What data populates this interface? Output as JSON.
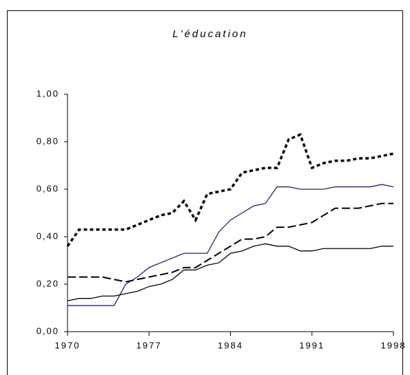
{
  "chart_data": {
    "type": "line",
    "title": "L'éducation",
    "x": [
      1970,
      1971,
      1972,
      1973,
      1974,
      1975,
      1976,
      1977,
      1978,
      1979,
      1980,
      1981,
      1982,
      1983,
      1984,
      1985,
      1986,
      1987,
      1988,
      1989,
      1990,
      1991,
      1992,
      1993,
      1994,
      1995,
      1996,
      1997,
      1998
    ],
    "series": [
      {
        "color": "#000000",
        "style": "dotted",
        "values": [
          0.36,
          0.43,
          0.43,
          0.43,
          0.43,
          0.43,
          0.45,
          0.47,
          0.49,
          0.5,
          0.55,
          0.47,
          0.58,
          0.59,
          0.6,
          0.67,
          0.68,
          0.69,
          0.69,
          0.81,
          0.83,
          0.69,
          0.71,
          0.72,
          0.72,
          0.73,
          0.73,
          0.74,
          0.75
        ]
      },
      {
        "color": "#1f1f7a",
        "style": "solid",
        "values": [
          0.11,
          0.11,
          0.11,
          0.11,
          0.11,
          0.2,
          0.23,
          0.27,
          0.29,
          0.31,
          0.33,
          0.33,
          0.33,
          0.42,
          0.47,
          0.5,
          0.53,
          0.54,
          0.61,
          0.61,
          0.6,
          0.6,
          0.6,
          0.61,
          0.61,
          0.61,
          0.61,
          0.62,
          0.61
        ]
      },
      {
        "color": "#000000",
        "style": "dashed",
        "values": [
          0.23,
          0.23,
          0.23,
          0.23,
          0.22,
          0.21,
          0.22,
          0.23,
          0.24,
          0.25,
          0.27,
          0.27,
          0.3,
          0.33,
          0.36,
          0.39,
          0.39,
          0.4,
          0.44,
          0.44,
          0.45,
          0.46,
          0.49,
          0.52,
          0.52,
          0.52,
          0.53,
          0.54,
          0.54
        ]
      },
      {
        "color": "#000000",
        "style": "solid",
        "values": [
          0.13,
          0.14,
          0.14,
          0.15,
          0.15,
          0.16,
          0.17,
          0.19,
          0.2,
          0.22,
          0.26,
          0.26,
          0.28,
          0.29,
          0.33,
          0.34,
          0.36,
          0.37,
          0.36,
          0.36,
          0.34,
          0.34,
          0.35,
          0.35,
          0.35,
          0.35,
          0.35,
          0.36,
          0.36
        ]
      }
    ],
    "xlim": [
      1970,
      1998
    ],
    "xticks": [
      1970,
      1977,
      1984,
      1991,
      1998
    ],
    "ylim": [
      0,
      1
    ],
    "yticks": [
      {
        "value": 0,
        "label": "0,00"
      },
      {
        "value": 0.2,
        "label": "0,20"
      },
      {
        "value": 0.4,
        "label": "0,40"
      },
      {
        "value": 0.6,
        "label": "0,60"
      },
      {
        "value": 0.8,
        "label": "0,80"
      },
      {
        "value": 1,
        "label": "1,00"
      }
    ]
  }
}
